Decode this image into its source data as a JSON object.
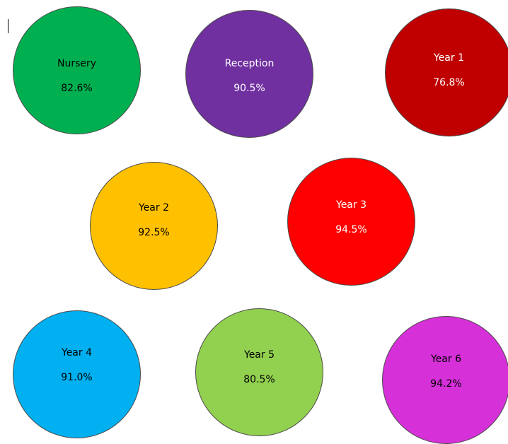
{
  "circles": [
    {
      "label": "Nursery",
      "value": "82.6%",
      "color": "#00b050",
      "text_color": "#000000"
    },
    {
      "label": "Reception",
      "value": "90.5%",
      "color": "#7030a0",
      "text_color": "#ffffff"
    },
    {
      "label": "Year 1",
      "value": "76.8%",
      "color": "#c00000",
      "text_color": "#ffffff"
    },
    {
      "label": "Year 2",
      "value": "92.5%",
      "color": "#ffc000",
      "text_color": "#000000"
    },
    {
      "label": "Year 3",
      "value": "94.5%",
      "color": "#ff0000",
      "text_color": "#ffffff"
    },
    {
      "label": "Year 4",
      "value": "91.0%",
      "color": "#00b0f0",
      "text_color": "#000000"
    },
    {
      "label": "Year 5",
      "value": "80.5%",
      "color": "#92d050",
      "text_color": "#000000"
    },
    {
      "label": "Year 6",
      "value": "94.2%",
      "color": "#d630d8",
      "text_color": "#000000"
    }
  ]
}
